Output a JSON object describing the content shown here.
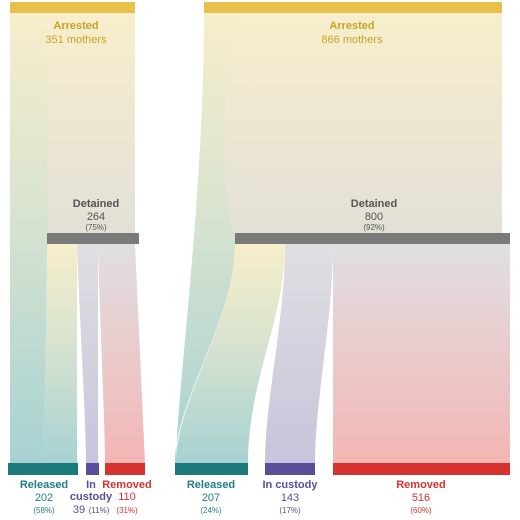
{
  "colors": {
    "arrested": "#e8c04a",
    "arrested_text": "#c9a227",
    "detained_bar": "#7a7a7a",
    "detained_text": "#555555",
    "released": "#1b7a7a",
    "released_text": "#1f7e86",
    "custody": "#5a4d9a",
    "custody_text": "#5a4d9a",
    "removed": "#d6322e",
    "removed_text": "#d6322e"
  },
  "panels": [
    {
      "arrested": {
        "label": "Arrested",
        "count": "351 mothers"
      },
      "detained": {
        "label": "Detained",
        "count": "264",
        "pct": "(75%)"
      },
      "released": {
        "label": "Released",
        "count": "202",
        "pct": "(58%)"
      },
      "custody": {
        "label_line1": "In",
        "label_line2": "custody",
        "count": "39",
        "pct": "(11%)"
      },
      "removed": {
        "label": "Removed",
        "count": "110",
        "pct": "(31%)"
      }
    },
    {
      "arrested": {
        "label": "Arrested",
        "count": "866 mothers"
      },
      "detained": {
        "label": "Detained",
        "count": "800",
        "pct": "(92%)"
      },
      "released": {
        "label": "Released",
        "count": "207",
        "pct": "(24%)"
      },
      "custody": {
        "label": "In custody",
        "count": "143",
        "pct": "(17%)"
      },
      "removed": {
        "label": "Removed",
        "count": "516",
        "pct": "(60%)"
      }
    }
  ]
}
